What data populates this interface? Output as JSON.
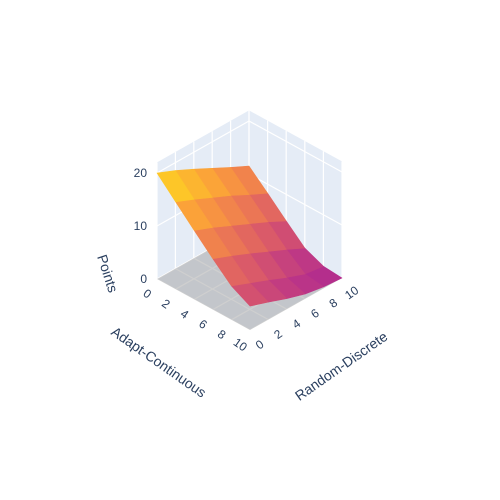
{
  "chart_data": {
    "type": "surface3d",
    "title": "",
    "x_axis": {
      "title": "Random-Discrete",
      "range": [
        0,
        10
      ],
      "tick_values": [
        0,
        2,
        4,
        6,
        8,
        10
      ],
      "tick_labels": [
        "0",
        "2",
        "4",
        "6",
        "8",
        "10"
      ]
    },
    "y_axis": {
      "title": "Adapt-Continuous",
      "range": [
        0,
        10
      ],
      "tick_values": [
        0,
        2,
        4,
        6,
        8,
        10
      ],
      "tick_labels": [
        "0",
        "2",
        "4",
        "6",
        "8",
        "10"
      ]
    },
    "z_axis": {
      "title": "Points",
      "range": [
        0,
        22
      ],
      "tick_values": [
        0,
        10,
        20
      ],
      "tick_labels": [
        "0",
        "10",
        "20"
      ]
    },
    "x": [
      0,
      2,
      4,
      6,
      8,
      10
    ],
    "y": [
      0,
      2,
      4,
      6,
      8,
      10
    ],
    "z": [
      [
        20,
        18.5,
        16.8,
        15.0,
        13.2,
        11.5
      ],
      [
        16.5,
        15.0,
        13.4,
        11.8,
        10.0,
        8.3
      ],
      [
        13.0,
        11.6,
        10.0,
        8.4,
        6.8,
        5.0
      ],
      [
        9.6,
        8.2,
        6.7,
        5.1,
        3.5,
        1.8
      ],
      [
        6.4,
        5.0,
        3.6,
        2.1,
        0.8,
        0.3
      ],
      [
        4.5,
        3.3,
        2.0,
        0.9,
        0.3,
        0.0
      ]
    ],
    "colorscale": [
      "#0d0887",
      "#46039f",
      "#7201a8",
      "#9c179e",
      "#bd3786",
      "#d8576b",
      "#ed7953",
      "#fb9f3a",
      "#fdca26",
      "#f0f921"
    ],
    "colorscale_range": [
      -15,
      22
    ],
    "background_color": "#e5ecf6",
    "grid_color": "#ffffff",
    "shadow_color": "#a8a8a8"
  }
}
